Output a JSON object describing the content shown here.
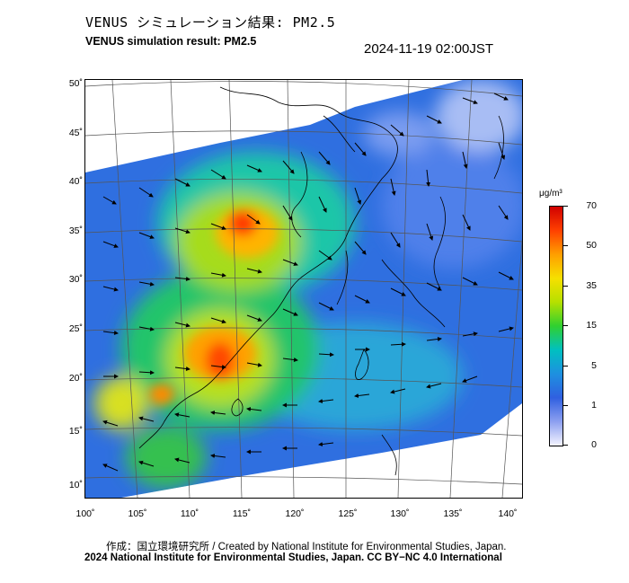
{
  "header": {
    "title_jp": "VENUS シミュレーション結果: PM2.5",
    "title_en": "VENUS simulation result: PM2.5",
    "timestamp": "2024-11-19 02:00JST"
  },
  "axes": {
    "lat_labels": [
      "50˚",
      "45˚",
      "40˚",
      "35˚",
      "30˚",
      "25˚",
      "20˚",
      "15˚",
      "10˚"
    ],
    "lon_labels": [
      "100˚",
      "105˚",
      "110˚",
      "115˚",
      "120˚",
      "125˚",
      "130˚",
      "135˚",
      "140˚"
    ]
  },
  "colorbar": {
    "unit": "μg/m³",
    "labels": [
      "70",
      "50",
      "35",
      "15",
      "5",
      "1",
      "0"
    ],
    "colors": [
      "#d00000",
      "#ff4000",
      "#ff9f00",
      "#f6e000",
      "#b6e000",
      "#30d030",
      "#00c0c0",
      "#1e90e0",
      "#3060e0",
      "#8da0f0",
      "#f4f4ff"
    ]
  },
  "credits": {
    "line1": "作成：国立環境研究所 / Created by National Institute for Environmental Studies, Japan.",
    "line2": "2024 National Institute for Environmental Studies, Japan. CC BY−NC 4.0 International"
  }
}
